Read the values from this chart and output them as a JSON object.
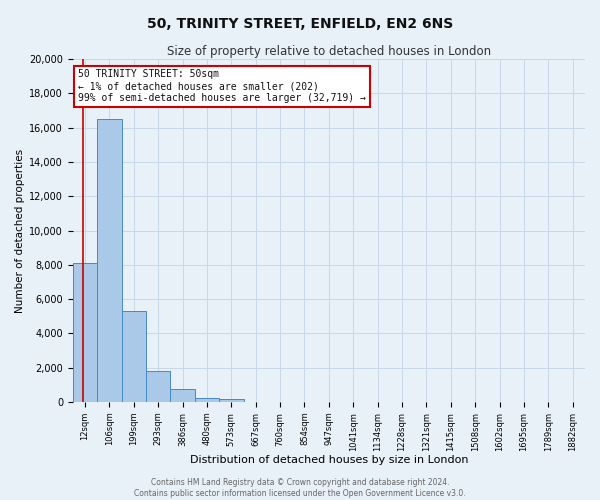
{
  "title": "50, TRINITY STREET, ENFIELD, EN2 6NS",
  "subtitle": "Size of property relative to detached houses in London",
  "xlabel": "Distribution of detached houses by size in London",
  "ylabel": "Number of detached properties",
  "bar_labels": [
    "12sqm",
    "106sqm",
    "199sqm",
    "293sqm",
    "386sqm",
    "480sqm",
    "573sqm",
    "667sqm",
    "760sqm",
    "854sqm",
    "947sqm",
    "1041sqm",
    "1134sqm",
    "1228sqm",
    "1321sqm",
    "1415sqm",
    "1508sqm",
    "1602sqm",
    "1695sqm",
    "1789sqm",
    "1882sqm"
  ],
  "bar_values": [
    8100,
    16500,
    5300,
    1800,
    750,
    250,
    200,
    0,
    0,
    0,
    0,
    0,
    0,
    0,
    0,
    0,
    0,
    0,
    0,
    0,
    0
  ],
  "bar_color": "#aac8e8",
  "bar_edge_color": "#4488cc",
  "annotation_lines": [
    "50 TRINITY STREET: 50sqm",
    "← 1% of detached houses are smaller (202)",
    "99% of semi-detached houses are larger (32,719) →"
  ],
  "annotation_box_facecolor": "#ffffff",
  "annotation_box_edgecolor": "#cc0000",
  "red_line_color": "#cc0000",
  "ylim": [
    0,
    20000
  ],
  "yticks": [
    0,
    2000,
    4000,
    6000,
    8000,
    10000,
    12000,
    14000,
    16000,
    18000,
    20000
  ],
  "grid_color": "#c8d8e8",
  "background_color": "#e8f0f8",
  "footer_line1": "Contains HM Land Registry data © Crown copyright and database right 2024.",
  "footer_line2": "Contains public sector information licensed under the Open Government Licence v3.0."
}
